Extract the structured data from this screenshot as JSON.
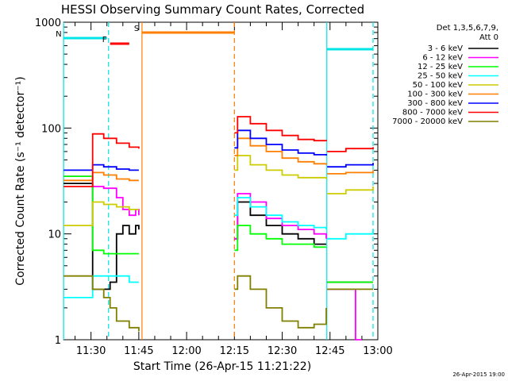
{
  "chart_data": {
    "type": "line",
    "title": "HESSI Observing Summary Count Rates, Corrected",
    "xlabel": "Start Time (26-Apr-15 11:21:22)",
    "ylabel": "Corrected Count Rate (s⁻¹ detector⁻¹)",
    "footer": "26-Apr-2015 19:00",
    "yscale": "log",
    "ylim": [
      1,
      1000
    ],
    "xlim_minutes": [
      21.37,
      120
    ],
    "x_ticks": [
      {
        "m": 30,
        "label": "11:30"
      },
      {
        "m": 45,
        "label": "11:45"
      },
      {
        "m": 60,
        "label": "12:00"
      },
      {
        "m": 75,
        "label": "12:15"
      },
      {
        "m": 90,
        "label": "12:30"
      },
      {
        "m": 105,
        "label": "12:45"
      },
      {
        "m": 120,
        "label": "13:00"
      }
    ],
    "y_ticks": [
      {
        "v": 1,
        "label": "1"
      },
      {
        "v": 10,
        "label": "10"
      },
      {
        "v": 100,
        "label": "100"
      },
      {
        "v": 1000,
        "label": "1000"
      }
    ],
    "legend": {
      "header1": "Det 1,3,5,6,7,9,",
      "header2": "Att 0"
    },
    "flags": [
      {
        "label": "S",
        "color": "#ff7f00",
        "start": 46,
        "end": 75
      },
      {
        "label": "N",
        "color": "#00e5e5",
        "start": 21.4,
        "end": 35
      },
      {
        "label": "F",
        "color": "#ff0000",
        "start": 36,
        "end": 42
      },
      {
        "label": "",
        "color": "#00e5e5",
        "start": 104,
        "end": 118.5
      }
    ],
    "markers": [
      {
        "m": 21.4,
        "style": "solid",
        "color": "#00e5e5"
      },
      {
        "m": 35.5,
        "style": "dash",
        "color": "#00e5e5"
      },
      {
        "m": 46,
        "style": "solid",
        "color": "#ff7f00"
      },
      {
        "m": 75,
        "style": "dash",
        "color": "#ff7f00"
      },
      {
        "m": 104,
        "style": "solid",
        "color": "#00e5e5"
      },
      {
        "m": 118.5,
        "style": "dash",
        "color": "#00e5e5"
      }
    ],
    "gaps": [
      [
        45,
        75
      ],
      [
        103.8,
        104.1
      ]
    ],
    "series": [
      {
        "name": "3 - 6 keV",
        "color": "#000000",
        "points": [
          [
            21.4,
            30
          ],
          [
            30,
            30
          ],
          [
            30.5,
            3
          ],
          [
            34,
            3
          ],
          [
            36,
            3.5
          ],
          [
            38,
            10
          ],
          [
            40,
            12
          ],
          [
            42,
            10
          ],
          [
            44,
            12
          ],
          [
            45,
            11
          ],
          [
            75,
            9
          ],
          [
            76,
            20
          ],
          [
            80,
            15
          ],
          [
            85,
            12
          ],
          [
            90,
            10
          ],
          [
            95,
            9
          ],
          [
            100,
            8
          ],
          [
            103.8,
            8
          ],
          [
            104.1,
            3.5
          ],
          [
            110,
            3.5
          ],
          [
            118.5,
            3.5
          ]
        ]
      },
      {
        "name": "6 - 12 keV",
        "color": "#ff00ff",
        "points": [
          [
            21.4,
            35
          ],
          [
            30,
            35
          ],
          [
            30.5,
            28
          ],
          [
            34,
            27
          ],
          [
            38,
            22
          ],
          [
            40,
            17
          ],
          [
            42,
            15
          ],
          [
            44,
            17
          ],
          [
            45,
            15
          ],
          [
            75,
            9
          ],
          [
            76,
            24
          ],
          [
            80,
            20
          ],
          [
            85,
            14
          ],
          [
            90,
            12
          ],
          [
            95,
            11
          ],
          [
            100,
            10
          ],
          [
            103.8,
            9
          ],
          [
            104.1,
            3
          ],
          [
            112,
            3
          ],
          [
            113,
            1
          ],
          [
            115,
            1
          ]
        ]
      },
      {
        "name": "12 - 25 keV",
        "color": "#00ff00",
        "points": [
          [
            21.4,
            35
          ],
          [
            30,
            35
          ],
          [
            30.5,
            7
          ],
          [
            34,
            6.5
          ],
          [
            38,
            6.5
          ],
          [
            42,
            6.5
          ],
          [
            45,
            6.5
          ],
          [
            75,
            7
          ],
          [
            76,
            12
          ],
          [
            80,
            10
          ],
          [
            85,
            9
          ],
          [
            90,
            8
          ],
          [
            95,
            8
          ],
          [
            100,
            7.5
          ],
          [
            103.8,
            7.5
          ],
          [
            104.1,
            3.5
          ],
          [
            110,
            3.5
          ],
          [
            118.5,
            3.5
          ]
        ]
      },
      {
        "name": "25 - 50 keV",
        "color": "#00ffff",
        "points": [
          [
            21.4,
            2.5
          ],
          [
            30,
            2.5
          ],
          [
            30.5,
            4
          ],
          [
            34,
            4
          ],
          [
            38,
            4
          ],
          [
            42,
            3.5
          ],
          [
            45,
            3.5
          ],
          [
            75,
            15
          ],
          [
            76,
            22
          ],
          [
            80,
            18
          ],
          [
            85,
            15
          ],
          [
            90,
            13
          ],
          [
            95,
            12
          ],
          [
            100,
            11.5
          ],
          [
            103.8,
            11
          ],
          [
            104.1,
            9
          ],
          [
            110,
            10
          ],
          [
            118.5,
            11
          ]
        ]
      },
      {
        "name": "50 - 100 keV",
        "color": "#cccc00",
        "points": [
          [
            21.4,
            12
          ],
          [
            30,
            12
          ],
          [
            30.5,
            20
          ],
          [
            34,
            19
          ],
          [
            38,
            18
          ],
          [
            42,
            17
          ],
          [
            45,
            17
          ],
          [
            75,
            40
          ],
          [
            76,
            55
          ],
          [
            80,
            45
          ],
          [
            85,
            40
          ],
          [
            90,
            36
          ],
          [
            95,
            34
          ],
          [
            100,
            34
          ],
          [
            103.8,
            33
          ],
          [
            104.1,
            24
          ],
          [
            110,
            26
          ],
          [
            118.5,
            28
          ]
        ]
      },
      {
        "name": "100 - 300 keV",
        "color": "#ff7f00",
        "points": [
          [
            21.4,
            32
          ],
          [
            30,
            32
          ],
          [
            30.5,
            38
          ],
          [
            34,
            36
          ],
          [
            38,
            33
          ],
          [
            42,
            32
          ],
          [
            45,
            32
          ],
          [
            75,
            55
          ],
          [
            76,
            80
          ],
          [
            80,
            68
          ],
          [
            85,
            60
          ],
          [
            90,
            52
          ],
          [
            95,
            48
          ],
          [
            100,
            46
          ],
          [
            103.8,
            45
          ],
          [
            104.1,
            37
          ],
          [
            110,
            38
          ],
          [
            118.5,
            40
          ]
        ]
      },
      {
        "name": "300 - 800 keV",
        "color": "#0000ff",
        "points": [
          [
            21.4,
            40
          ],
          [
            30,
            40
          ],
          [
            30.5,
            45
          ],
          [
            34,
            43
          ],
          [
            38,
            41
          ],
          [
            42,
            40
          ],
          [
            45,
            40
          ],
          [
            75,
            65
          ],
          [
            76,
            95
          ],
          [
            80,
            80
          ],
          [
            85,
            70
          ],
          [
            90,
            62
          ],
          [
            95,
            58
          ],
          [
            100,
            56
          ],
          [
            103.8,
            55
          ],
          [
            104.1,
            43
          ],
          [
            110,
            45
          ],
          [
            118.5,
            47
          ]
        ]
      },
      {
        "name": "800 - 7000 keV",
        "color": "#ff0000",
        "points": [
          [
            21.4,
            28
          ],
          [
            30,
            28
          ],
          [
            30.5,
            88
          ],
          [
            34,
            80
          ],
          [
            38,
            72
          ],
          [
            42,
            66
          ],
          [
            45,
            64
          ],
          [
            75,
            90
          ],
          [
            76,
            128
          ],
          [
            80,
            110
          ],
          [
            85,
            95
          ],
          [
            90,
            85
          ],
          [
            95,
            78
          ],
          [
            100,
            76
          ],
          [
            103.8,
            75
          ],
          [
            104.1,
            60
          ],
          [
            110,
            64
          ],
          [
            118.5,
            66
          ]
        ]
      },
      {
        "name": "7000 - 20000 keV",
        "color": "#7f7f00",
        "points": [
          [
            21.4,
            4
          ],
          [
            30,
            4
          ],
          [
            30.5,
            3
          ],
          [
            34,
            2.5
          ],
          [
            36,
            2
          ],
          [
            38,
            1.5
          ],
          [
            42,
            1.3
          ],
          [
            45,
            1.2
          ],
          [
            75,
            3
          ],
          [
            76,
            4
          ],
          [
            80,
            3
          ],
          [
            85,
            2
          ],
          [
            90,
            1.5
          ],
          [
            95,
            1.3
          ],
          [
            100,
            1.4
          ],
          [
            103.8,
            2
          ],
          [
            104.1,
            3
          ],
          [
            110,
            3
          ],
          [
            118.5,
            3
          ]
        ]
      }
    ]
  }
}
